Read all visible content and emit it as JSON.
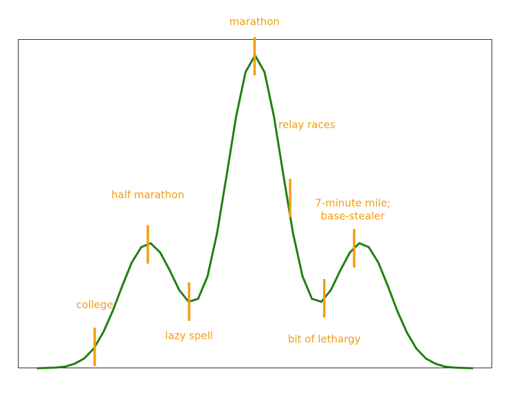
{
  "chart_data": {
    "type": "line",
    "xlim": [
      0,
      100
    ],
    "ylim": [
      0,
      100
    ],
    "series": [
      {
        "color": "#1f7f0f",
        "x": [
          4,
          6,
          8,
          10,
          12,
          14,
          16,
          18,
          20,
          22,
          24,
          26,
          28,
          30,
          32,
          34,
          36,
          38,
          40,
          42,
          44,
          46,
          48,
          50,
          52,
          54,
          56,
          58,
          60,
          62,
          64,
          66,
          68,
          70,
          72,
          74,
          76,
          78,
          80,
          82,
          84,
          86,
          88,
          90,
          92,
          94,
          96
        ],
        "values": [
          0.0,
          0.1,
          0.2,
          0.5,
          1.4,
          3.0,
          6.0,
          10.9,
          17.4,
          25.0,
          32.1,
          36.8,
          38.0,
          35.2,
          29.8,
          23.8,
          20.2,
          21.1,
          28.0,
          41.1,
          58.5,
          76.4,
          90.0,
          95.1,
          90.0,
          76.4,
          58.5,
          41.1,
          28.0,
          21.1,
          20.2,
          23.8,
          29.8,
          35.2,
          38.0,
          36.8,
          32.1,
          25.0,
          17.4,
          10.9,
          6.0,
          3.0,
          1.4,
          0.5,
          0.2,
          0.1,
          0.0
        ]
      }
    ],
    "annotation_color": "#f39c12",
    "annotations": [
      {
        "label": [
          "college"
        ],
        "x": 16.2
      },
      {
        "label": [
          "half marathon"
        ],
        "x": 27.4
      },
      {
        "label": [
          "lazy spell"
        ],
        "x": 36.1
      },
      {
        "label": [
          "marathon"
        ],
        "x": 49.9
      },
      {
        "label": [
          "relay races"
        ],
        "x": 57.4
      },
      {
        "label": [
          "bit of lethargy"
        ],
        "x": 64.6
      },
      {
        "label": [
          "7-minute mile;",
          "base-stealer"
        ],
        "x": 70.9
      }
    ]
  }
}
